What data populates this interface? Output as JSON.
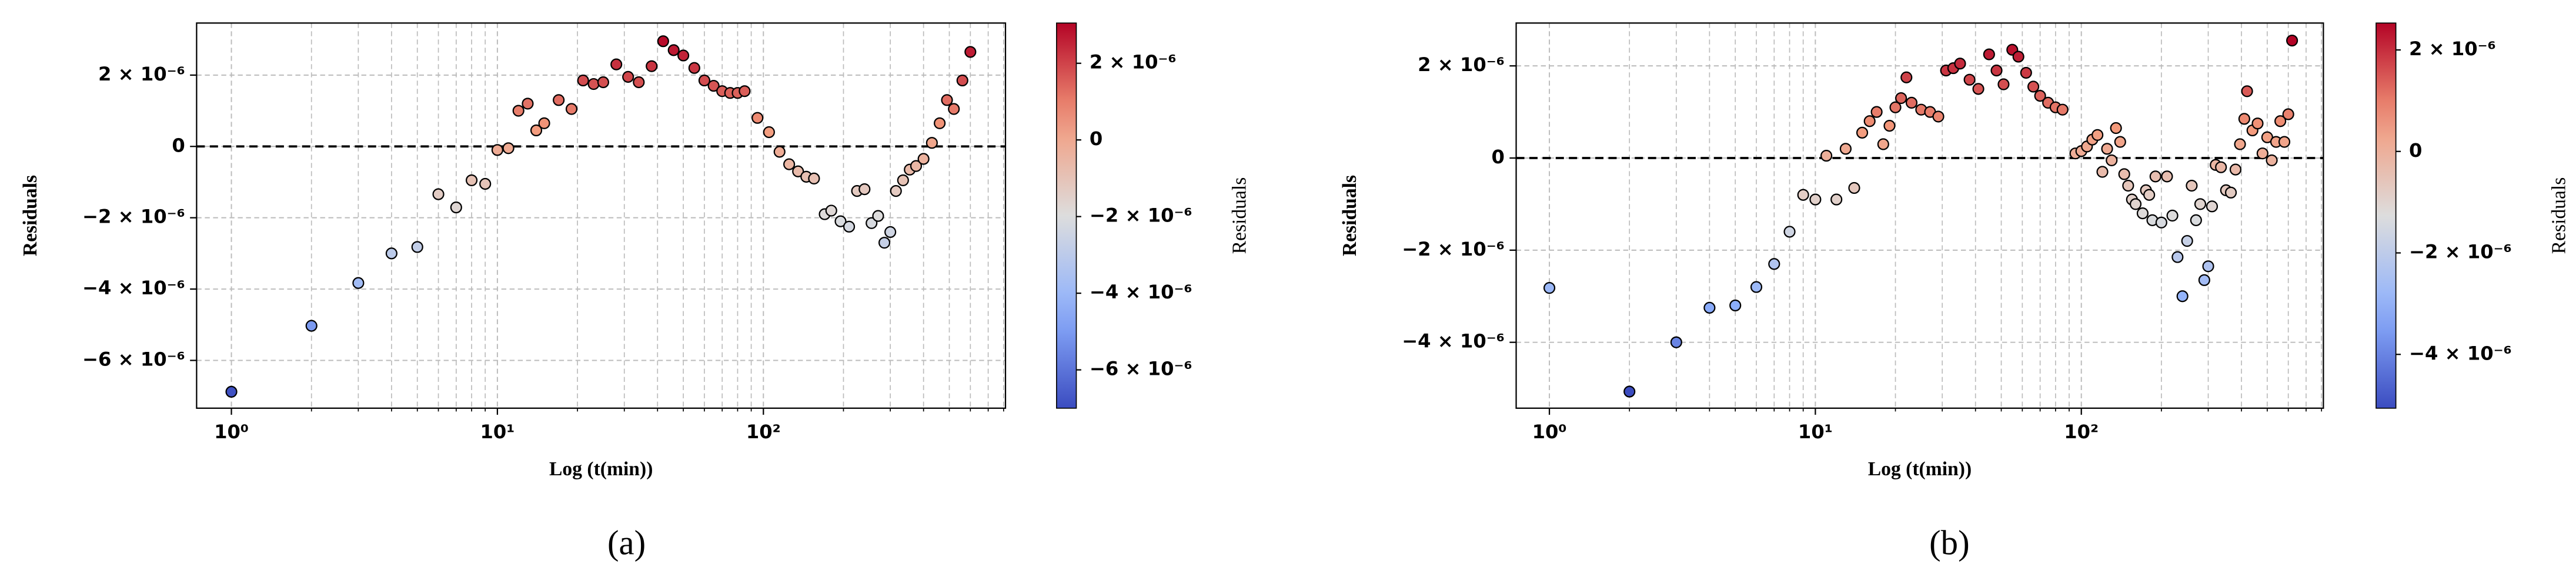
{
  "chart_data": [
    {
      "type": "scatter",
      "panel_label": "(a)",
      "xlabel": "Log (t(min))",
      "ylabel": "Residuals",
      "colorbar_label": "Residuals",
      "log_x": true,
      "grid": true,
      "colormap": "coolwarm",
      "marker_edge": "#000000",
      "hline": 0,
      "hline_style": "dashed",
      "xlim": [
        0.74,
        813
      ],
      "xticks": [
        {
          "value": 1,
          "label": "10⁰"
        },
        {
          "value": 10,
          "label": "10¹"
        },
        {
          "value": 100,
          "label": "10²"
        }
      ],
      "xticks_minor": [
        2,
        3,
        4,
        5,
        6,
        7,
        8,
        9,
        20,
        30,
        40,
        50,
        60,
        70,
        80,
        90,
        200,
        300,
        400,
        500,
        600,
        700,
        800
      ],
      "ylim": [
        -7.34e-06,
        3.46e-06
      ],
      "yticks": [
        {
          "value": 2e-06,
          "label": "2 × 10⁻⁶"
        },
        0,
        {
          "value": -2e-06,
          "label": "−2 × 10⁻⁶"
        },
        {
          "value": -4e-06,
          "label": "−4 × 10⁻⁶"
        },
        {
          "value": -6e-06,
          "label": "−6 × 10⁻⁶"
        }
      ],
      "clim": [
        -7e-06,
        3.05e-06
      ],
      "cticks": [
        {
          "value": 2e-06,
          "label": "2 × 10⁻⁶"
        },
        0,
        {
          "value": -2e-06,
          "label": "−2 × 10⁻⁶"
        },
        {
          "value": -4e-06,
          "label": "−4 × 10⁻⁶"
        },
        {
          "value": -6e-06,
          "label": "−6 × 10⁻⁶"
        }
      ],
      "x": [
        1,
        2,
        3,
        4,
        5,
        6,
        7,
        8,
        9,
        10,
        11,
        12,
        13,
        14,
        15,
        17,
        19,
        21,
        23,
        25,
        28,
        31,
        34,
        38,
        42,
        46,
        50,
        55,
        60,
        65,
        70,
        75,
        80,
        85,
        95,
        105,
        115,
        125,
        135,
        145,
        155,
        170,
        180,
        195,
        210,
        225,
        240,
        255,
        270,
        285,
        300,
        315,
        335,
        355,
        375,
        400,
        430,
        460,
        490,
        520,
        560,
        600
      ],
      "values": [
        -6.88e-06,
        -5.03e-06,
        -3.83e-06,
        -3e-06,
        -2.82e-06,
        -1.34e-06,
        -1.71e-06,
        -9.5e-07,
        -1.05e-06,
        -1e-07,
        -5e-08,
        1e-06,
        1.2e-06,
        4.5e-07,
        6.5e-07,
        1.3e-06,
        1.05e-06,
        1.85e-06,
        1.75e-06,
        1.8e-06,
        2.3e-06,
        1.95e-06,
        1.8e-06,
        2.25e-06,
        2.95e-06,
        2.7e-06,
        2.55e-06,
        2.2e-06,
        1.85e-06,
        1.7e-06,
        1.55e-06,
        1.5e-06,
        1.5e-06,
        1.55e-06,
        8e-07,
        4e-07,
        -1.5e-07,
        -5e-07,
        -7e-07,
        -8.5e-07,
        -9e-07,
        -1.9e-06,
        -1.8e-06,
        -2.1e-06,
        -2.25e-06,
        -1.25e-06,
        -1.2e-06,
        -2.15e-06,
        -1.95e-06,
        -2.7e-06,
        -2.4e-06,
        -1.25e-06,
        -9.5e-07,
        -6.5e-07,
        -5.5e-07,
        -3.5e-07,
        1e-07,
        6.5e-07,
        1.3e-06,
        1.05e-06,
        1.85e-06,
        2.65e-06
      ]
    },
    {
      "type": "scatter",
      "panel_label": "(b)",
      "xlabel": "Log (t(min))",
      "ylabel": "Residuals",
      "colorbar_label": "Residuals",
      "log_x": true,
      "grid": true,
      "colormap": "coolwarm",
      "marker_edge": "#000000",
      "hline": 0,
      "hline_style": "dashed",
      "xlim": [
        0.75,
        813
      ],
      "xticks": [
        {
          "value": 1,
          "label": "10⁰"
        },
        {
          "value": 10,
          "label": "10¹"
        },
        {
          "value": 100,
          "label": "10²"
        }
      ],
      "xticks_minor": [
        2,
        3,
        4,
        5,
        6,
        7,
        8,
        9,
        20,
        30,
        40,
        50,
        60,
        70,
        80,
        90,
        200,
        300,
        400,
        500,
        600,
        700,
        800
      ],
      "ylim": [
        -5.43e-06,
        2.93e-06
      ],
      "yticks": [
        {
          "value": 2e-06,
          "label": "2 × 10⁻⁶"
        },
        0,
        {
          "value": -2e-06,
          "label": "−2 × 10⁻⁶"
        },
        {
          "value": -4e-06,
          "label": "−4 × 10⁻⁶"
        }
      ],
      "clim": [
        -5.06e-06,
        2.53e-06
      ],
      "cticks": [
        {
          "value": 2e-06,
          "label": "2 × 10⁻⁶"
        },
        0,
        {
          "value": -2e-06,
          "label": "−2 × 10⁻⁶"
        },
        {
          "value": -4e-06,
          "label": "−4 × 10⁻⁶"
        }
      ],
      "x": [
        1,
        2,
        3,
        4,
        5,
        6,
        7,
        8,
        9,
        10,
        11,
        12,
        13,
        14,
        15,
        16,
        17,
        18,
        19,
        20,
        21,
        22,
        23,
        25,
        27,
        29,
        31,
        33,
        35,
        38,
        41,
        45,
        48,
        51,
        55,
        58,
        62,
        66,
        70,
        75,
        80,
        85,
        95,
        100,
        105,
        110,
        115,
        120,
        125,
        130,
        135,
        140,
        145,
        150,
        155,
        160,
        170,
        175,
        180,
        185,
        190,
        200,
        210,
        220,
        230,
        240,
        250,
        260,
        270,
        280,
        290,
        300,
        310,
        320,
        335,
        350,
        365,
        380,
        395,
        410,
        420,
        440,
        460,
        480,
        500,
        520,
        540,
        560,
        580,
        600,
        620
      ],
      "values": [
        -2.82e-06,
        -5.07e-06,
        -4e-06,
        -3.25e-06,
        -3.2e-06,
        -2.8e-06,
        -2.3e-06,
        -1.6e-06,
        -8e-07,
        -9e-07,
        5e-08,
        -9e-07,
        2e-07,
        -6.5e-07,
        5.5e-07,
        8e-07,
        1e-06,
        3e-07,
        7e-07,
        1.1e-06,
        1.3e-06,
        1.75e-06,
        1.2e-06,
        1.05e-06,
        1e-06,
        9e-07,
        1.9e-06,
        1.95e-06,
        2.05e-06,
        1.7e-06,
        1.5e-06,
        2.25e-06,
        1.9e-06,
        1.6e-06,
        2.35e-06,
        2.2e-06,
        1.85e-06,
        1.55e-06,
        1.35e-06,
        1.2e-06,
        1.1e-06,
        1.05e-06,
        1e-07,
        1.5e-07,
        2.5e-07,
        4e-07,
        5e-07,
        -3e-07,
        2e-07,
        -5e-08,
        6.5e-07,
        3.5e-07,
        -3.5e-07,
        -6e-07,
        -9e-07,
        -1e-06,
        -1.2e-06,
        -7e-07,
        -8e-07,
        -1.35e-06,
        -4e-07,
        -1.4e-06,
        -4e-07,
        -1.25e-06,
        -2.15e-06,
        -3e-06,
        -1.8e-06,
        -6e-07,
        -1.35e-06,
        -1e-06,
        -2.65e-06,
        -2.35e-06,
        -1.05e-06,
        -1.5e-07,
        -2e-07,
        -7e-07,
        -7.5e-07,
        -2.5e-07,
        3e-07,
        8.5e-07,
        1.45e-06,
        6e-07,
        7.5e-07,
        1e-07,
        4.5e-07,
        -5e-08,
        3.5e-07,
        8e-07,
        3.5e-07,
        9.5e-07,
        2.55e-06
      ]
    }
  ]
}
